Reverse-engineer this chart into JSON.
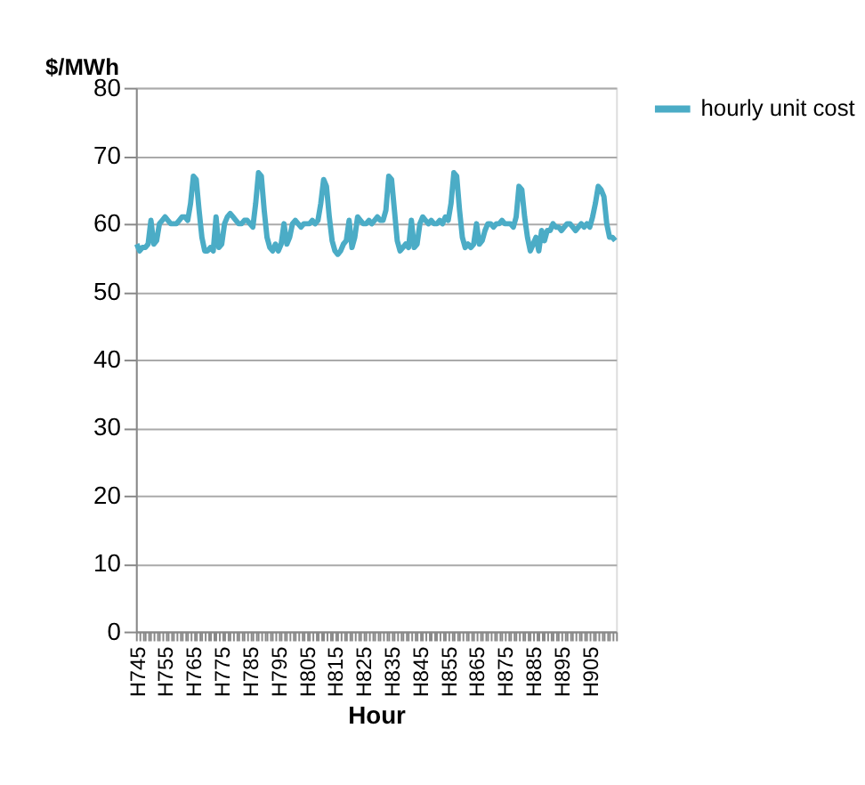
{
  "chart_data": {
    "type": "line",
    "xlabel": "Hour",
    "ylabel": "$/MWh",
    "categories": [
      "H745",
      null,
      null,
      null,
      null,
      null,
      null,
      null,
      null,
      null,
      "H755",
      null,
      null,
      null,
      null,
      null,
      null,
      null,
      null,
      null,
      "H765",
      null,
      null,
      null,
      null,
      null,
      null,
      null,
      null,
      null,
      "H775",
      null,
      null,
      null,
      null,
      null,
      null,
      null,
      null,
      null,
      "H785",
      null,
      null,
      null,
      null,
      null,
      null,
      null,
      null,
      null,
      "H795",
      null,
      null,
      null,
      null,
      null,
      null,
      null,
      null,
      null,
      "H805",
      null,
      null,
      null,
      null,
      null,
      null,
      null,
      null,
      null,
      "H815",
      null,
      null,
      null,
      null,
      null,
      null,
      null,
      null,
      null,
      "H825",
      null,
      null,
      null,
      null,
      null,
      null,
      null,
      null,
      null,
      "H835",
      null,
      null,
      null,
      null,
      null,
      null,
      null,
      null,
      null,
      "H845",
      null,
      null,
      null,
      null,
      null,
      null,
      null,
      null,
      null,
      "H855",
      null,
      null,
      null,
      null,
      null,
      null,
      null,
      null,
      null,
      "H865",
      null,
      null,
      null,
      null,
      null,
      null,
      null,
      null,
      null,
      "H875",
      null,
      null,
      null,
      null,
      null,
      null,
      null,
      null,
      null,
      "H885",
      null,
      null,
      null,
      null,
      null,
      null,
      null,
      null,
      null,
      "H895",
      null,
      null,
      null,
      null,
      null,
      null,
      null,
      null,
      null,
      "H905",
      null,
      null,
      null,
      null,
      null,
      null,
      null,
      null,
      null
    ],
    "series": [
      {
        "name": "hourly unit cost",
        "color": "#4bacc6",
        "values": [
          57,
          56,
          56.5,
          56.5,
          57,
          60.5,
          57,
          57.5,
          60,
          60.5,
          61,
          60.5,
          60,
          60,
          60,
          60.5,
          61,
          61,
          60.5,
          63,
          67,
          66.5,
          62,
          58,
          56,
          56,
          56.5,
          56,
          61,
          56.5,
          57,
          60,
          61,
          61.5,
          61,
          60.5,
          60,
          60,
          60.5,
          60.5,
          60,
          59.5,
          63,
          67.5,
          67,
          62,
          58,
          56.5,
          56,
          57,
          56,
          57,
          60,
          57,
          58,
          60,
          60.5,
          60,
          59.5,
          60,
          60,
          60,
          60.5,
          60,
          60.5,
          63,
          66.5,
          65.5,
          61,
          57.5,
          56,
          55.5,
          56,
          57,
          57.5,
          60.5,
          56.5,
          58,
          61,
          60.5,
          60,
          60,
          60.5,
          60,
          60.5,
          61,
          60.5,
          60.5,
          62,
          67,
          66.5,
          62,
          57.5,
          56,
          56.5,
          57,
          56.5,
          60.5,
          56.5,
          57,
          60,
          61,
          60.5,
          60,
          60.5,
          60,
          60,
          60.5,
          60,
          61,
          60.5,
          63,
          67.5,
          67,
          62,
          58,
          56.5,
          57,
          56.5,
          57,
          60,
          57,
          57.5,
          59,
          60,
          60,
          59.5,
          60,
          60,
          60.5,
          60,
          60,
          60,
          59.5,
          61,
          65.5,
          65,
          61,
          58,
          56,
          57,
          58,
          56,
          59,
          57.5,
          59,
          59,
          60,
          59.5,
          59.5,
          59,
          59.5,
          60,
          60,
          59.5,
          59,
          59.5,
          60,
          59.5,
          60,
          59.5,
          61,
          63,
          65.5,
          65,
          64,
          60,
          58,
          58,
          57.5
        ]
      }
    ],
    "ylim": [
      0,
      80
    ],
    "yticks": [
      0,
      10,
      20,
      30,
      40,
      50,
      60,
      70,
      80
    ],
    "grid": "y",
    "legend": "right",
    "marker": "none",
    "line_style": "solid"
  }
}
